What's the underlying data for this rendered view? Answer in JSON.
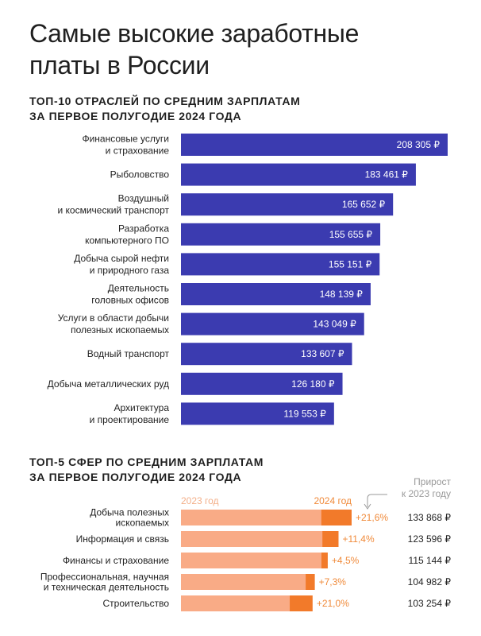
{
  "title_lines": [
    "Самые высокие заработные",
    "платы в России"
  ],
  "colors": {
    "bar_primary": "#3b3bb0",
    "bar_2023": "#f9ab86",
    "bar_2024": "#f27a2a",
    "growth_text": "#f08a3a",
    "note_text": "#9a9a9a"
  },
  "chart_data": [
    {
      "type": "bar",
      "orientation": "horizontal",
      "title_lines": [
        "ТОП-10 ОТРАСЛЕЙ ПО СРЕДНИМ ЗАРПЛАТАМ",
        "ЗА ПЕРВОЕ ПОЛУГОДИЕ 2024 ГОДА"
      ],
      "categories": [
        [
          "Финансовые услуги",
          "и страхование"
        ],
        [
          "Рыболовство"
        ],
        [
          "Воздушный",
          "и космический транспорт"
        ],
        [
          "Разработка",
          "компьютерного ПО"
        ],
        [
          "Добыча сырой нефти",
          "и природного газа"
        ],
        [
          "Деятельность",
          "головных офисов"
        ],
        [
          "Услуги в области добычи",
          "полезных ископаемых"
        ],
        [
          "Водный транспорт"
        ],
        [
          "Добыча металлических руд"
        ],
        [
          "Архитектура",
          "и проектирование"
        ]
      ],
      "values": [
        208305,
        183461,
        165652,
        155655,
        155151,
        148139,
        143049,
        133607,
        126180,
        119553
      ],
      "value_labels": [
        "208 305 ₽",
        "183 461 ₽",
        "165 652 ₽",
        "155 655 ₽",
        "155 151 ₽",
        "148 139 ₽",
        "143 049 ₽",
        "133 607 ₽",
        "126 180 ₽",
        "119 553 ₽"
      ]
    },
    {
      "type": "bar",
      "orientation": "horizontal",
      "stacked": true,
      "title_lines": [
        "ТОП-5 СФЕР ПО СРЕДНИМ ЗАРПЛАТАМ",
        "ЗА ПЕРВОЕ ПОЛУГОДИЕ 2024 ГОДА"
      ],
      "series_labels": [
        "2023 год",
        "2024 год"
      ],
      "growth_header_lines": [
        "Прирост",
        "к 2023 году"
      ],
      "categories": [
        [
          "Добыча полезных",
          "ископаемых"
        ],
        [
          "Информация и связь"
        ],
        [
          "Финансы и страхование"
        ],
        [
          "Профессиональная, научная",
          "и техническая деятельность"
        ],
        [
          "Строительство"
        ]
      ],
      "values_2024": [
        133868,
        123596,
        115144,
        104982,
        103254
      ],
      "growth_pct": [
        21.6,
        11.4,
        4.5,
        7.3,
        21.0
      ],
      "growth_labels": [
        "+21,6%",
        "+11,4%",
        "+4,5%",
        "+7,3%",
        "+21,0%"
      ],
      "value_labels": [
        "133 868 ₽",
        "123 596 ₽",
        "115 144 ₽",
        "104 982 ₽",
        "103 254 ₽"
      ]
    }
  ]
}
